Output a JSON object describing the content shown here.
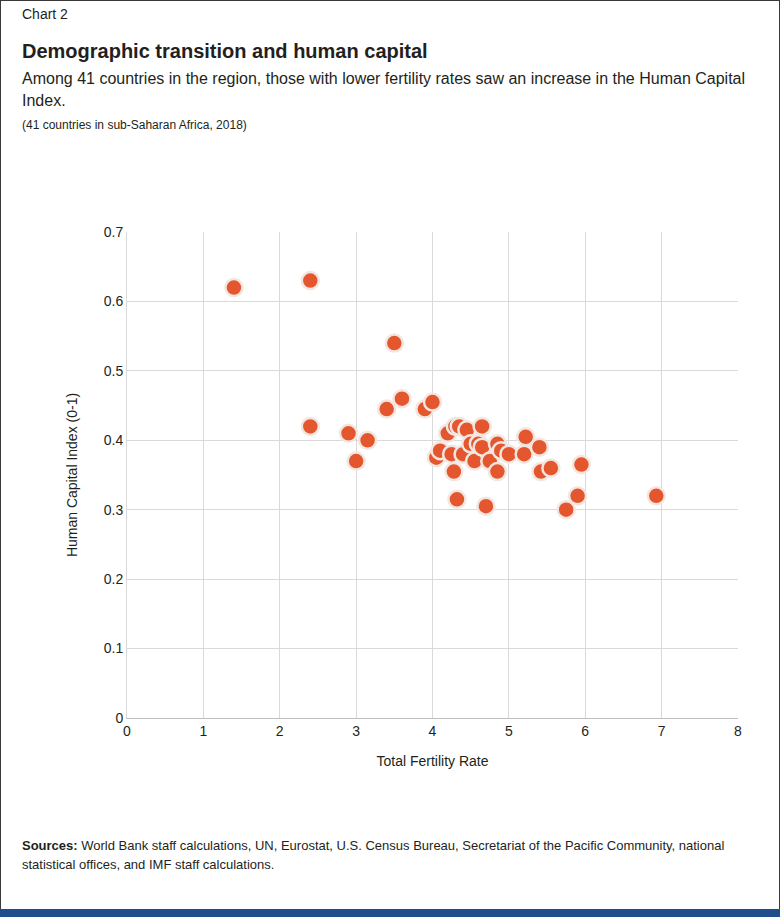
{
  "chart_data": {
    "type": "scatter",
    "chart_label": "Chart 2",
    "title": "Demographic transition and human capital",
    "subtitle": "Among 41 countries in the region, those with lower fertility rates saw an increase in the Human Capital Index.",
    "note": "(41 countries in sub-Saharan Africa, 2018)",
    "x_label": "Total Fertility Rate",
    "y_label": "Human Capital Index (0-1)",
    "source_label": "Sources:",
    "source_text": "World Bank staff calculations, UN, Eurostat, U.S. Census Bureau, Secretariat of the Pacific Community, national statistical offices, and IMF staff calculations.",
    "x": [
      1.4,
      2.4,
      2.4,
      2.9,
      3.0,
      3.15,
      3.4,
      3.5,
      3.6,
      3.9,
      4.0,
      4.05,
      4.1,
      4.2,
      4.25,
      4.28,
      4.3,
      4.32,
      4.35,
      4.4,
      4.45,
      4.5,
      4.55,
      4.6,
      4.65,
      4.65,
      4.7,
      4.75,
      4.85,
      4.85,
      4.9,
      5.0,
      5.2,
      5.22,
      5.4,
      5.42,
      5.55,
      5.75,
      5.9,
      5.95,
      6.93
    ],
    "values": [
      0.62,
      0.63,
      0.42,
      0.41,
      0.37,
      0.4,
      0.445,
      0.54,
      0.46,
      0.445,
      0.455,
      0.375,
      0.385,
      0.41,
      0.38,
      0.355,
      0.42,
      0.315,
      0.42,
      0.38,
      0.415,
      0.395,
      0.37,
      0.395,
      0.42,
      0.39,
      0.305,
      0.37,
      0.395,
      0.355,
      0.385,
      0.38,
      0.38,
      0.405,
      0.39,
      0.355,
      0.36,
      0.3,
      0.32,
      0.365,
      0.32
    ],
    "color": "#e4572e",
    "marker": "circle",
    "xlim": [
      0,
      8
    ],
    "ylim": [
      0,
      0.7
    ],
    "xticks": [
      0,
      1,
      2,
      3,
      4,
      5,
      6,
      7,
      8
    ],
    "yticks": [
      0,
      0.1,
      0.2,
      0.3,
      0.4,
      0.5,
      0.6,
      0.7
    ],
    "grid": true
  }
}
